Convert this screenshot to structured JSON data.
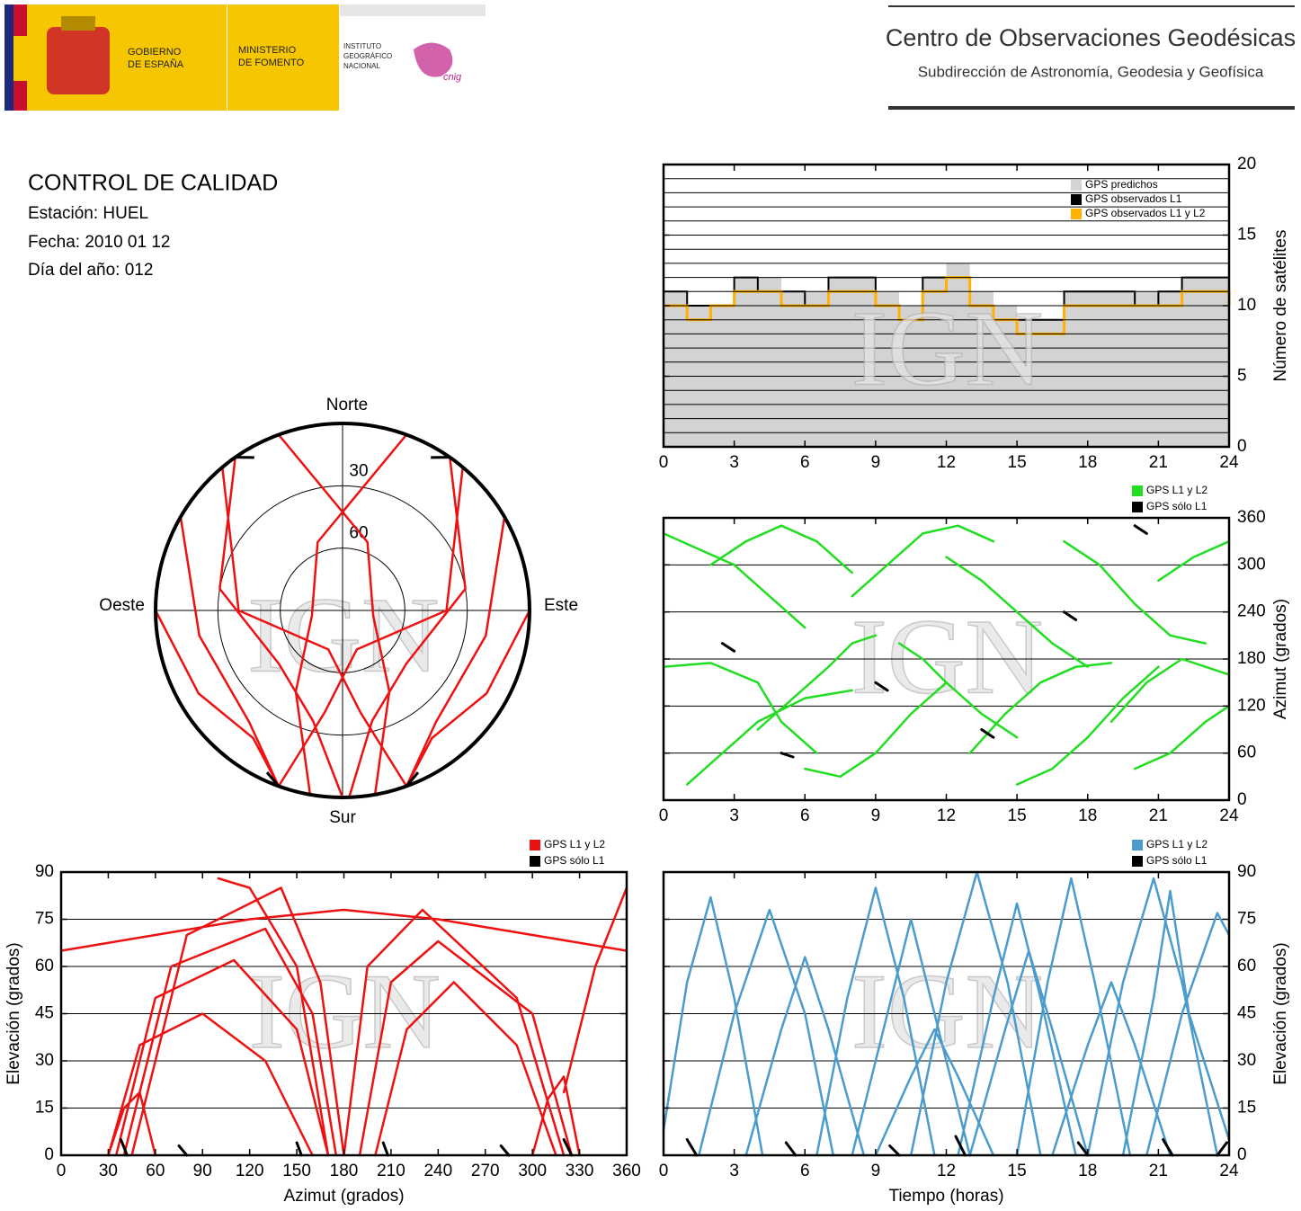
{
  "header": {
    "gobierno": [
      "GOBIERNO",
      "DE ESPAÑA"
    ],
    "ministerio": [
      "MINISTERIO",
      "DE FOMENTO"
    ],
    "instituto": [
      "INSTITUTO",
      "GEOGRÁFICO",
      "NACIONAL"
    ],
    "cnig": "cnig",
    "center_title": "Centro de Observaciones Geodésicas",
    "center_subtitle": "Subdirección de Astronomía, Geodesia y Geofísica"
  },
  "report": {
    "title": "CONTROL DE CALIDAD",
    "lines": [
      "Estación: HUEL",
      "Fecha: 2010 01 12",
      "Día del año: 012"
    ]
  },
  "watermark": "IGN",
  "chart_data": [
    {
      "type": "step",
      "ylabel": "Número de satélites",
      "yaxis": "right",
      "grid": true,
      "legend": "upper right",
      "x": [
        0,
        1,
        2,
        3,
        4,
        5,
        6,
        7,
        8,
        9,
        10,
        11,
        12,
        13,
        14,
        15,
        16,
        17,
        18,
        19,
        20,
        21,
        22,
        23,
        24
      ],
      "xlim": [
        0,
        24
      ],
      "xticks": [
        0,
        3,
        6,
        9,
        12,
        15,
        18,
        21,
        24
      ],
      "ylim": [
        0,
        20
      ],
      "yticks": [
        0,
        5,
        10,
        15,
        20
      ],
      "minor_yticks": [
        1,
        2,
        3,
        4,
        6,
        7,
        8,
        9,
        11,
        12,
        13,
        14,
        16,
        17,
        18,
        19
      ],
      "series": [
        {
          "name": "GPS predichos",
          "color": "#d3d3d3",
          "values": [
            11,
            10,
            10,
            12,
            12,
            11,
            11,
            12,
            12,
            11,
            10,
            12,
            13,
            11,
            10,
            9,
            9,
            11,
            11,
            11,
            11,
            11,
            12,
            12,
            11
          ]
        },
        {
          "name": "GPS observados L1",
          "color": "#000000",
          "values": [
            11,
            10,
            10,
            12,
            11,
            11,
            10,
            12,
            12,
            10,
            9,
            12,
            12,
            10,
            9,
            9,
            9,
            11,
            11,
            11,
            10,
            11,
            12,
            12,
            11
          ]
        },
        {
          "name": "GPS observados L1 y L2",
          "color": "#ffb000",
          "values": [
            10,
            9,
            10,
            11,
            11,
            10,
            10,
            11,
            11,
            10,
            9,
            11,
            12,
            10,
            9,
            8,
            8,
            10,
            10,
            10,
            10,
            10,
            11,
            11,
            10
          ]
        }
      ]
    },
    {
      "type": "line",
      "ylabel": "Azimut (grados)",
      "yaxis": "right",
      "grid": true,
      "legend": "above right",
      "xlim": [
        0,
        24
      ],
      "xticks": [
        0,
        3,
        6,
        9,
        12,
        15,
        18,
        21,
        24
      ],
      "ylim": [
        0,
        360
      ],
      "yticks": [
        0,
        60,
        120,
        180,
        240,
        300,
        360
      ],
      "series": [
        {
          "name": "GPS L1 y L2",
          "color": "#22dd22",
          "x": [
            0,
            1.5,
            3,
            4.5,
            6,
            null,
            0,
            2,
            4,
            5,
            6.5,
            null,
            1,
            2.5,
            4,
            6,
            8,
            null,
            2,
            3.5,
            5,
            6.5,
            8,
            null,
            4,
            5.5,
            7,
            8,
            9,
            null,
            6,
            7.5,
            9,
            10.5,
            12,
            null,
            8,
            9.5,
            11,
            12.5,
            14,
            null,
            10,
            11,
            12,
            13.5,
            15,
            null,
            12,
            13.5,
            15,
            16.5,
            18,
            null,
            13,
            14.5,
            16,
            17.5,
            19,
            null,
            15,
            16.5,
            18,
            19.5,
            21,
            null,
            17,
            18.5,
            20,
            21.5,
            23,
            null,
            19,
            20.5,
            22,
            23,
            24,
            null,
            20,
            21.5,
            23,
            24,
            null,
            21,
            22.5,
            24
          ],
          "values": [
            340,
            320,
            300,
            260,
            220,
            null,
            170,
            175,
            150,
            100,
            60,
            null,
            20,
            60,
            100,
            130,
            140,
            null,
            300,
            330,
            350,
            330,
            290,
            null,
            90,
            130,
            170,
            200,
            210,
            null,
            40,
            30,
            60,
            110,
            150,
            null,
            260,
            300,
            340,
            350,
            330,
            null,
            200,
            180,
            150,
            110,
            80,
            null,
            310,
            280,
            240,
            200,
            170,
            null,
            60,
            110,
            150,
            170,
            175,
            null,
            20,
            40,
            80,
            130,
            170,
            null,
            330,
            300,
            250,
            210,
            200,
            null,
            100,
            150,
            180,
            170,
            160,
            null,
            40,
            60,
            100,
            120,
            null,
            280,
            310,
            330
          ]
        },
        {
          "name": "GPS sólo L1",
          "color": "#000000",
          "x": [
            2.5,
            3,
            null,
            5,
            5.5,
            null,
            9,
            9.5,
            null,
            13.5,
            14,
            null,
            17,
            17.5,
            null,
            20,
            20.5
          ],
          "values": [
            200,
            190,
            null,
            60,
            55,
            null,
            150,
            140,
            null,
            90,
            80,
            null,
            240,
            230,
            null,
            350,
            340
          ]
        }
      ]
    },
    {
      "type": "polar",
      "directions": {
        "north": "Norte",
        "east": "Este",
        "south": "Sur",
        "west": "Oeste"
      },
      "rlim": [
        90,
        0
      ],
      "rticks": [
        30,
        60
      ],
      "series": [
        {
          "color": "#ee1111",
          "azimuth": [
            325,
            280,
            230,
            195,
            180,
            null,
            35,
            80,
            130,
            165,
            178,
            null,
            320,
            270,
            200,
            170,
            160,
            null,
            40,
            90,
            160,
            190,
            200,
            null,
            300,
            260,
            220,
            200,
            null,
            60,
            100,
            140,
            160,
            null,
            340,
            20,
            100,
            150,
            170,
            null,
            20,
            340,
            260,
            210,
            190,
            null,
            270,
            240,
            215,
            200,
            null,
            90,
            120,
            145,
            160
          ],
          "elevation": [
            0,
            30,
            50,
            35,
            0,
            null,
            0,
            30,
            50,
            35,
            0,
            null,
            0,
            40,
            70,
            40,
            0,
            null,
            0,
            40,
            70,
            40,
            0,
            null,
            0,
            20,
            20,
            0,
            null,
            0,
            20,
            20,
            0,
            null,
            0,
            55,
            75,
            45,
            0,
            null,
            0,
            55,
            75,
            45,
            0,
            null,
            0,
            10,
            15,
            0,
            null,
            0,
            10,
            15,
            0
          ]
        },
        {
          "color": "#000000",
          "azimuth": [
            325,
            330,
            null,
            35,
            30,
            null,
            200,
            205,
            null,
            160,
            155
          ],
          "elevation": [
            0,
            5,
            null,
            0,
            5,
            null,
            0,
            4,
            null,
            0,
            4
          ]
        }
      ]
    },
    {
      "type": "line",
      "xlabel": "Azimut (grados)",
      "ylabel": "Elevación (grados)",
      "yaxis": "left",
      "grid": true,
      "legend": "above right",
      "xlim": [
        0,
        360
      ],
      "xticks": [
        0,
        30,
        60,
        90,
        120,
        150,
        180,
        210,
        240,
        270,
        300,
        330,
        360
      ],
      "ylim": [
        0,
        90
      ],
      "yticks": [
        0,
        15,
        30,
        45,
        60,
        75,
        90
      ],
      "series": [
        {
          "name": "GPS L1 y L2",
          "color": "#ee1111",
          "x": [
            30,
            50,
            90,
            130,
            160,
            null,
            35,
            60,
            110,
            150,
            170,
            null,
            40,
            70,
            130,
            160,
            175,
            null,
            45,
            80,
            140,
            165,
            180,
            null,
            200,
            220,
            250,
            290,
            315,
            null,
            190,
            210,
            240,
            300,
            325,
            null,
            180,
            195,
            230,
            290,
            320,
            null,
            0,
            60,
            120,
            180,
            240,
            300,
            360,
            null,
            320,
            340,
            360,
            null,
            30,
            40,
            50,
            60,
            null,
            300,
            310,
            320,
            330,
            null,
            100,
            120,
            150,
            170
          ],
          "values": [
            0,
            35,
            45,
            30,
            0,
            null,
            0,
            50,
            62,
            40,
            0,
            null,
            0,
            60,
            72,
            45,
            0,
            null,
            0,
            70,
            85,
            55,
            0,
            null,
            0,
            40,
            55,
            35,
            0,
            null,
            0,
            55,
            68,
            45,
            0,
            null,
            0,
            60,
            78,
            50,
            0,
            null,
            65,
            70,
            75,
            78,
            75,
            70,
            65,
            null,
            20,
            60,
            85,
            null,
            0,
            15,
            20,
            0,
            null,
            0,
            18,
            25,
            0,
            null,
            88,
            85,
            60,
            0
          ]
        },
        {
          "name": "GPS sólo L1",
          "color": "#000000",
          "x": [
            38,
            42,
            null,
            75,
            80,
            null,
            150,
            153,
            null,
            205,
            208,
            null,
            280,
            285,
            null,
            320,
            325
          ],
          "values": [
            5,
            0,
            null,
            3,
            0,
            null,
            4,
            0,
            null,
            4,
            0,
            null,
            3,
            0,
            null,
            5,
            0
          ]
        }
      ]
    },
    {
      "type": "line",
      "xlabel": "Tiempo (horas)",
      "ylabel": "Elevación (grados)",
      "yaxis": "right",
      "grid": true,
      "legend": "above right",
      "xlim": [
        0,
        24
      ],
      "xticks": [
        0,
        3,
        6,
        9,
        12,
        15,
        18,
        21,
        24
      ],
      "ylim": [
        0,
        90
      ],
      "yticks": [
        0,
        15,
        30,
        45,
        60,
        75,
        90
      ],
      "series": [
        {
          "name": "GPS L1 y L2",
          "color": "#4b9ccc",
          "x": [
            0,
            1,
            2,
            3,
            4.2,
            null,
            1.5,
            3,
            4.5,
            6,
            7.2,
            null,
            6.5,
            7.8,
            9,
            10.2,
            11.5,
            null,
            3.5,
            5,
            6,
            7,
            8.5,
            null,
            8,
            9.5,
            10.5,
            11.5,
            13,
            null,
            10.5,
            12,
            13.3,
            14.6,
            16,
            null,
            12.5,
            14,
            15,
            16,
            17.5,
            null,
            15,
            16.3,
            17.3,
            18.3,
            19.8,
            null,
            18,
            19.5,
            20.8,
            22,
            23.5,
            null,
            19.5,
            20.8,
            21.5,
            22.3,
            24,
            null,
            20.5,
            22,
            23.5,
            24,
            null,
            9,
            10.5,
            11.5,
            12.5,
            14,
            null,
            13,
            14.5,
            15.5,
            16.5,
            18,
            null,
            16.5,
            18,
            19,
            20,
            21.5
          ],
          "values": [
            8,
            55,
            82,
            50,
            0,
            null,
            0,
            45,
            78,
            45,
            0,
            null,
            0,
            50,
            85,
            50,
            0,
            null,
            0,
            40,
            63,
            40,
            0,
            null,
            0,
            45,
            75,
            45,
            0,
            null,
            0,
            55,
            90,
            55,
            0,
            null,
            0,
            50,
            80,
            50,
            0,
            null,
            0,
            55,
            88,
            55,
            0,
            null,
            0,
            55,
            88,
            55,
            0,
            null,
            0,
            50,
            84,
            45,
            5,
            null,
            0,
            45,
            77,
            70,
            null,
            0,
            25,
            40,
            25,
            0,
            null,
            0,
            40,
            65,
            40,
            0,
            null,
            0,
            35,
            55,
            35,
            0
          ]
        },
        {
          "name": "GPS sólo L1",
          "color": "#000000",
          "x": [
            1,
            1.4,
            null,
            5.2,
            5.6,
            null,
            9.6,
            10,
            null,
            12.4,
            12.8,
            null,
            17.6,
            18,
            null,
            21.2,
            21.6,
            null,
            23.5,
            23.9
          ],
          "values": [
            5,
            0,
            null,
            4,
            0,
            null,
            3,
            0,
            null,
            6,
            0,
            null,
            4,
            0,
            null,
            5,
            0,
            null,
            0,
            4
          ]
        }
      ]
    }
  ]
}
